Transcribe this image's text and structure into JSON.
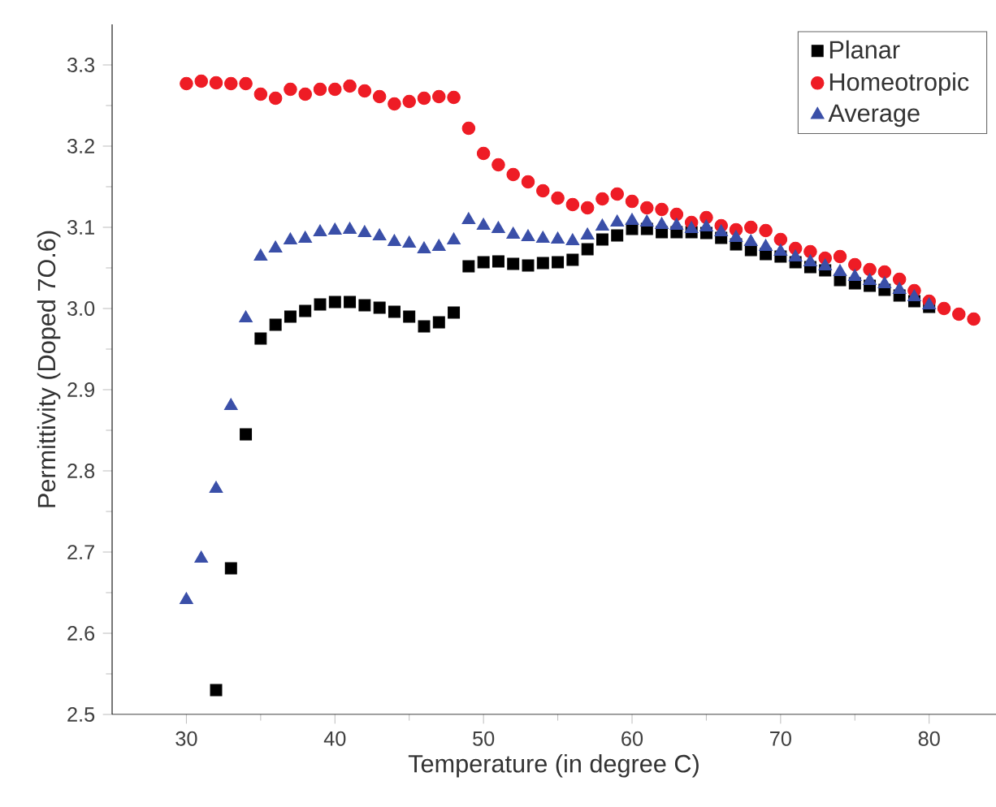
{
  "chart_data": {
    "type": "scatter",
    "xlabel": "Temperature (in degree C)",
    "ylabel": "Permittivity (Doped 7O.6)",
    "xlim": [
      25,
      84.5
    ],
    "xticks": [
      30,
      40,
      50,
      60,
      70,
      80
    ],
    "ylim": [
      2.5,
      3.35
    ],
    "yticks": [
      2.5,
      2.6,
      2.7,
      2.8,
      2.9,
      {
        "value": 3.0,
        "label": "3.0"
      },
      3.1,
      3.2,
      3.3
    ],
    "grid": false,
    "legend": "top right",
    "series": [
      {
        "name": "Planar",
        "color": "#000000",
        "marker": "square",
        "x": [
          32,
          33,
          34,
          35,
          36,
          37,
          38,
          39,
          40,
          41,
          42,
          43,
          44,
          45,
          46,
          47,
          48,
          49,
          50,
          51,
          52,
          53,
          54,
          55,
          56,
          57,
          58,
          59,
          60,
          61,
          62,
          63,
          64,
          65,
          66,
          67,
          68,
          69,
          70,
          71,
          72,
          73,
          74,
          75,
          76,
          77,
          78,
          79,
          80
        ],
        "values": [
          2.53,
          2.68,
          2.845,
          2.963,
          2.98,
          2.99,
          2.997,
          3.005,
          3.008,
          3.008,
          3.004,
          3.001,
          2.996,
          2.99,
          2.978,
          2.983,
          2.995,
          3.052,
          3.057,
          3.058,
          3.055,
          3.053,
          3.056,
          3.057,
          3.06,
          3.073,
          3.085,
          3.09,
          3.098,
          3.098,
          3.094,
          3.094,
          3.094,
          3.093,
          3.087,
          3.079,
          3.072,
          3.067,
          3.064,
          3.057,
          3.051,
          3.047,
          3.035,
          3.031,
          3.028,
          3.023,
          3.016,
          3.009,
          3.002
        ]
      },
      {
        "name": "Homeotropic",
        "color": "#ee1c25",
        "marker": "circle",
        "x": [
          30,
          31,
          32,
          33,
          34,
          35,
          36,
          37,
          38,
          39,
          40,
          41,
          42,
          43,
          44,
          45,
          46,
          47,
          48,
          49,
          50,
          51,
          52,
          53,
          54,
          55,
          56,
          57,
          58,
          59,
          60,
          61,
          62,
          63,
          64,
          65,
          66,
          67,
          68,
          69,
          70,
          71,
          72,
          73,
          74,
          75,
          76,
          77,
          78,
          79,
          80,
          81,
          82,
          83
        ],
        "values": [
          3.277,
          3.28,
          3.278,
          3.277,
          3.277,
          3.264,
          3.259,
          3.27,
          3.264,
          3.27,
          3.27,
          3.274,
          3.268,
          3.261,
          3.252,
          3.255,
          3.259,
          3.261,
          3.26,
          3.222,
          3.191,
          3.177,
          3.165,
          3.156,
          3.145,
          3.136,
          3.128,
          3.124,
          3.135,
          3.141,
          3.132,
          3.124,
          3.122,
          3.116,
          3.106,
          3.112,
          3.102,
          3.097,
          3.1,
          3.096,
          3.085,
          3.074,
          3.07,
          3.062,
          3.064,
          3.054,
          3.048,
          3.045,
          3.036,
          3.022,
          3.009,
          3.0,
          2.993,
          2.987
        ]
      },
      {
        "name": "Average",
        "color": "#3a4fa8",
        "marker": "triangle",
        "x": [
          30,
          31,
          32,
          33,
          34,
          35,
          36,
          37,
          38,
          39,
          40,
          41,
          42,
          43,
          44,
          45,
          46,
          47,
          48,
          49,
          50,
          51,
          52,
          53,
          54,
          55,
          56,
          57,
          58,
          59,
          60,
          61,
          62,
          63,
          64,
          65,
          66,
          67,
          68,
          69,
          70,
          71,
          72,
          73,
          74,
          75,
          76,
          77,
          78,
          79,
          80
        ],
        "values": [
          2.641,
          2.692,
          2.778,
          2.88,
          2.988,
          3.064,
          3.074,
          3.084,
          3.086,
          3.094,
          3.096,
          3.097,
          3.093,
          3.089,
          3.082,
          3.08,
          3.073,
          3.076,
          3.084,
          3.109,
          3.102,
          3.098,
          3.091,
          3.088,
          3.086,
          3.085,
          3.083,
          3.09,
          3.101,
          3.106,
          3.108,
          3.106,
          3.103,
          3.102,
          3.098,
          3.1,
          3.094,
          3.087,
          3.082,
          3.076,
          3.07,
          3.063,
          3.057,
          3.052,
          3.045,
          3.039,
          3.034,
          3.03,
          3.023,
          3.014,
          3.004
        ]
      }
    ]
  }
}
